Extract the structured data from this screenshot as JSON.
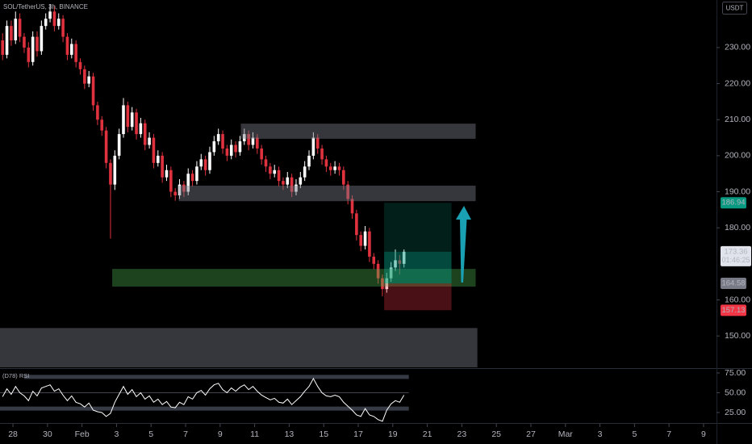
{
  "chart_data": {
    "type": "candlestick",
    "title": "SOL/TetherUS, 3h, BINANCE",
    "currency": "USDT",
    "rsi_title": "(D78) RSI",
    "countdown": "01:46:25",
    "up_color": "#ffffff",
    "down_color": "#e0323e",
    "grid": false,
    "xlim": [
      -0.75,
      40.75
    ],
    "xticks": [
      {
        "value": 0,
        "label": "28"
      },
      {
        "value": 2,
        "label": "30"
      },
      {
        "value": 4,
        "label": "Feb"
      },
      {
        "value": 6,
        "label": "3"
      },
      {
        "value": 8,
        "label": "5"
      },
      {
        "value": 10,
        "label": "7"
      },
      {
        "value": 12,
        "label": "9"
      },
      {
        "value": 14,
        "label": "11"
      },
      {
        "value": 16,
        "label": "13"
      },
      {
        "value": 18,
        "label": "15"
      },
      {
        "value": 20,
        "label": "17"
      },
      {
        "value": 22,
        "label": "19"
      },
      {
        "value": 24,
        "label": "21"
      },
      {
        "value": 26,
        "label": "23"
      },
      {
        "value": 28,
        "label": "25"
      },
      {
        "value": 30,
        "label": "27"
      },
      {
        "value": 32,
        "label": "Mar"
      },
      {
        "value": 34,
        "label": "3"
      },
      {
        "value": 36,
        "label": "5"
      },
      {
        "value": 38,
        "label": "7"
      },
      {
        "value": 40,
        "label": "9"
      }
    ],
    "ylim": [
      141.3,
      243.2
    ],
    "yticks": [
      {
        "value": 230,
        "label": "230.00"
      },
      {
        "value": 220,
        "label": "220.00"
      },
      {
        "value": 210,
        "label": "210.00"
      },
      {
        "value": 200,
        "label": "200.00"
      },
      {
        "value": 190,
        "label": "190.00"
      },
      {
        "value": 180,
        "label": "180.00"
      },
      {
        "value": 160,
        "label": "160.00"
      },
      {
        "value": 150,
        "label": "150.00"
      }
    ],
    "rsi_ylim": [
      13.8,
      79.1
    ],
    "rsi_yticks": [
      {
        "value": 75,
        "label": "75.00"
      },
      {
        "value": 50,
        "label": "50.00"
      },
      {
        "value": 25,
        "label": "25.00"
      }
    ],
    "rsi_bands": [
      70,
      30
    ],
    "rsi_mid": 50,
    "zones": [
      {
        "x": [
          13.2,
          26.8
        ],
        "y": [
          204.7,
          208.9
        ],
        "color": "rgba(120,123,134,0.45)"
      },
      {
        "x": [
          9.6,
          26.8
        ],
        "y": [
          187.4,
          191.7
        ],
        "color": "rgba(120,123,134,0.45)"
      },
      {
        "x": [
          5.75,
          26.8
        ],
        "y": [
          163.7,
          168.6
        ],
        "color": "rgba(76,175,80,0.38)"
      },
      {
        "x": [
          -0.75,
          26.9
        ],
        "y": [
          141.3,
          152.2
        ],
        "color": "rgba(120,123,134,0.45)"
      }
    ],
    "position": {
      "x": [
        21.5,
        25.4
      ],
      "target": 186.94,
      "entry": 164.58,
      "stop": 157.13
    },
    "x": [
      -0.6,
      -0.35,
      -0.1,
      0.15,
      0.4,
      0.65,
      0.9,
      1.15,
      1.4,
      1.65,
      1.9,
      2.15,
      2.4,
      2.65,
      2.9,
      3.15,
      3.4,
      3.65,
      3.9,
      4.15,
      4.4,
      4.65,
      4.9,
      5.15,
      5.4,
      5.65,
      5.9,
      6.15,
      6.4,
      6.65,
      6.9,
      7.15,
      7.4,
      7.65,
      7.9,
      8.15,
      8.4,
      8.65,
      8.9,
      9.15,
      9.4,
      9.65,
      9.9,
      10.15,
      10.4,
      10.65,
      10.9,
      11.15,
      11.4,
      11.65,
      11.9,
      12.15,
      12.4,
      12.65,
      12.9,
      13.15,
      13.4,
      13.65,
      13.9,
      14.15,
      14.4,
      14.65,
      14.9,
      15.15,
      15.4,
      15.65,
      15.9,
      16.15,
      16.4,
      16.65,
      16.9,
      17.15,
      17.4,
      17.65,
      17.9,
      18.15,
      18.4,
      18.65,
      18.9,
      19.15,
      19.4,
      19.65,
      19.9,
      20.15,
      20.4,
      20.65,
      20.9,
      21.15,
      21.4,
      21.65,
      21.9,
      22.15,
      22.4,
      22.65
    ],
    "candles": [
      [
        232,
        234,
        226.5,
        228
      ],
      [
        228,
        237.5,
        227,
        236
      ],
      [
        236,
        237.5,
        230.5,
        232
      ],
      [
        232,
        240,
        231,
        238
      ],
      [
        238,
        239.5,
        231.5,
        233
      ],
      [
        233,
        234,
        228.5,
        230
      ],
      [
        230,
        231.5,
        224.5,
        226
      ],
      [
        226,
        234.5,
        225,
        233
      ],
      [
        233,
        234.5,
        227.5,
        229
      ],
      [
        229,
        237.5,
        228,
        236
      ],
      [
        236,
        239.5,
        235,
        238
      ],
      [
        238,
        242,
        237,
        240
      ],
      [
        240,
        241.5,
        234.5,
        236
      ],
      [
        236,
        239.5,
        235,
        238
      ],
      [
        238,
        239,
        231.5,
        233
      ],
      [
        233,
        234,
        226.5,
        228
      ],
      [
        228,
        232.5,
        227,
        231
      ],
      [
        231,
        232,
        224.5,
        226
      ],
      [
        226,
        227,
        222.5,
        224
      ],
      [
        224,
        225,
        218.5,
        220
      ],
      [
        220,
        223.5,
        219,
        222
      ],
      [
        222,
        223,
        212.5,
        214
      ],
      [
        214,
        215,
        208.5,
        210
      ],
      [
        210,
        211,
        205.5,
        207
      ],
      [
        207,
        208,
        196.5,
        198
      ],
      [
        198,
        199,
        177,
        192
      ],
      [
        192,
        201.5,
        190.5,
        200
      ],
      [
        200,
        207.5,
        199,
        206
      ],
      [
        206,
        216,
        205,
        214
      ],
      [
        214,
        215,
        206.5,
        208
      ],
      [
        208,
        213.5,
        207,
        212
      ],
      [
        212,
        213,
        204.5,
        206
      ],
      [
        206,
        210.5,
        205,
        209
      ],
      [
        209,
        210,
        201.5,
        203
      ],
      [
        203,
        206.5,
        202,
        205
      ],
      [
        205,
        206,
        196.5,
        198
      ],
      [
        198,
        201.5,
        197,
        200
      ],
      [
        200,
        201,
        192.5,
        194
      ],
      [
        194,
        197.5,
        193,
        196
      ],
      [
        196,
        197,
        188.5,
        190
      ],
      [
        190,
        191,
        187.5,
        189
      ],
      [
        189,
        193.5,
        188,
        192
      ],
      [
        192,
        193,
        188.5,
        190
      ],
      [
        190,
        196.5,
        189,
        195
      ],
      [
        195,
        196,
        191.5,
        193
      ],
      [
        193,
        198.5,
        192,
        197
      ],
      [
        197,
        200.5,
        196,
        199
      ],
      [
        199,
        200,
        194.5,
        196
      ],
      [
        196,
        202.5,
        195,
        201
      ],
      [
        201,
        205.5,
        200,
        204
      ],
      [
        204,
        207.5,
        203,
        206
      ],
      [
        206,
        207,
        200.5,
        202
      ],
      [
        202,
        203,
        198.5,
        200
      ],
      [
        200,
        204.5,
        199,
        203
      ],
      [
        203,
        204,
        199.5,
        201
      ],
      [
        201,
        205.5,
        200,
        204
      ],
      [
        204,
        207.5,
        203,
        206
      ],
      [
        206,
        207,
        201.5,
        203
      ],
      [
        203,
        206.5,
        202,
        205
      ],
      [
        205,
        206,
        200.5,
        202
      ],
      [
        202,
        203,
        197.5,
        199
      ],
      [
        199,
        200,
        195.5,
        197
      ],
      [
        197,
        198,
        193.5,
        195
      ],
      [
        195,
        197.5,
        194,
        196
      ],
      [
        196,
        197,
        191.5,
        193
      ],
      [
        193,
        194,
        190.5,
        192
      ],
      [
        192,
        195.5,
        191,
        194
      ],
      [
        194,
        195,
        188.5,
        190
      ],
      [
        190,
        193.5,
        189,
        192
      ],
      [
        192,
        195.5,
        191,
        194
      ],
      [
        194,
        198.5,
        193,
        197
      ],
      [
        197,
        201.5,
        196,
        200
      ],
      [
        200,
        206.5,
        199,
        205
      ],
      [
        205,
        206,
        200.5,
        202
      ],
      [
        202,
        203,
        197.5,
        199
      ],
      [
        199,
        200,
        195.5,
        197
      ],
      [
        197,
        198,
        194.5,
        196
      ],
      [
        196,
        198.5,
        195,
        197
      ],
      [
        197,
        198,
        194.5,
        196
      ],
      [
        196,
        197,
        190.5,
        192
      ],
      [
        192,
        193,
        186.5,
        188
      ],
      [
        188,
        189,
        182.5,
        184
      ],
      [
        184,
        185,
        176.5,
        178
      ],
      [
        178,
        179,
        173.5,
        175
      ],
      [
        175,
        180.5,
        174,
        179
      ],
      [
        179,
        180,
        170.5,
        172
      ],
      [
        172,
        173,
        168.5,
        170
      ],
      [
        170,
        171,
        164.5,
        166
      ],
      [
        166,
        167,
        161,
        163
      ],
      [
        163,
        167.5,
        162,
        166
      ],
      [
        166,
        170.5,
        165,
        169
      ],
      [
        169,
        174,
        168,
        171
      ],
      [
        171,
        172.5,
        167,
        170
      ],
      [
        170,
        174,
        169,
        173.36
      ]
    ],
    "rsi": [
      45,
      55,
      48,
      58,
      50,
      46,
      40,
      52,
      46,
      56,
      58,
      60,
      52,
      55,
      47,
      40,
      46,
      38,
      36,
      32,
      37,
      28,
      26,
      25,
      20,
      24,
      38,
      48,
      58,
      48,
      54,
      45,
      50,
      42,
      46,
      38,
      42,
      35,
      39,
      32,
      31,
      38,
      35,
      45,
      42,
      50,
      53,
      47,
      55,
      60,
      62,
      54,
      50,
      56,
      52,
      57,
      60,
      54,
      58,
      52,
      47,
      44,
      41,
      43,
      38,
      37,
      42,
      35,
      40,
      45,
      52,
      58,
      68,
      58,
      50,
      46,
      45,
      47,
      45,
      38,
      33,
      28,
      22,
      20,
      30,
      22,
      20,
      16,
      14,
      28,
      36,
      40,
      38,
      47
    ]
  }
}
